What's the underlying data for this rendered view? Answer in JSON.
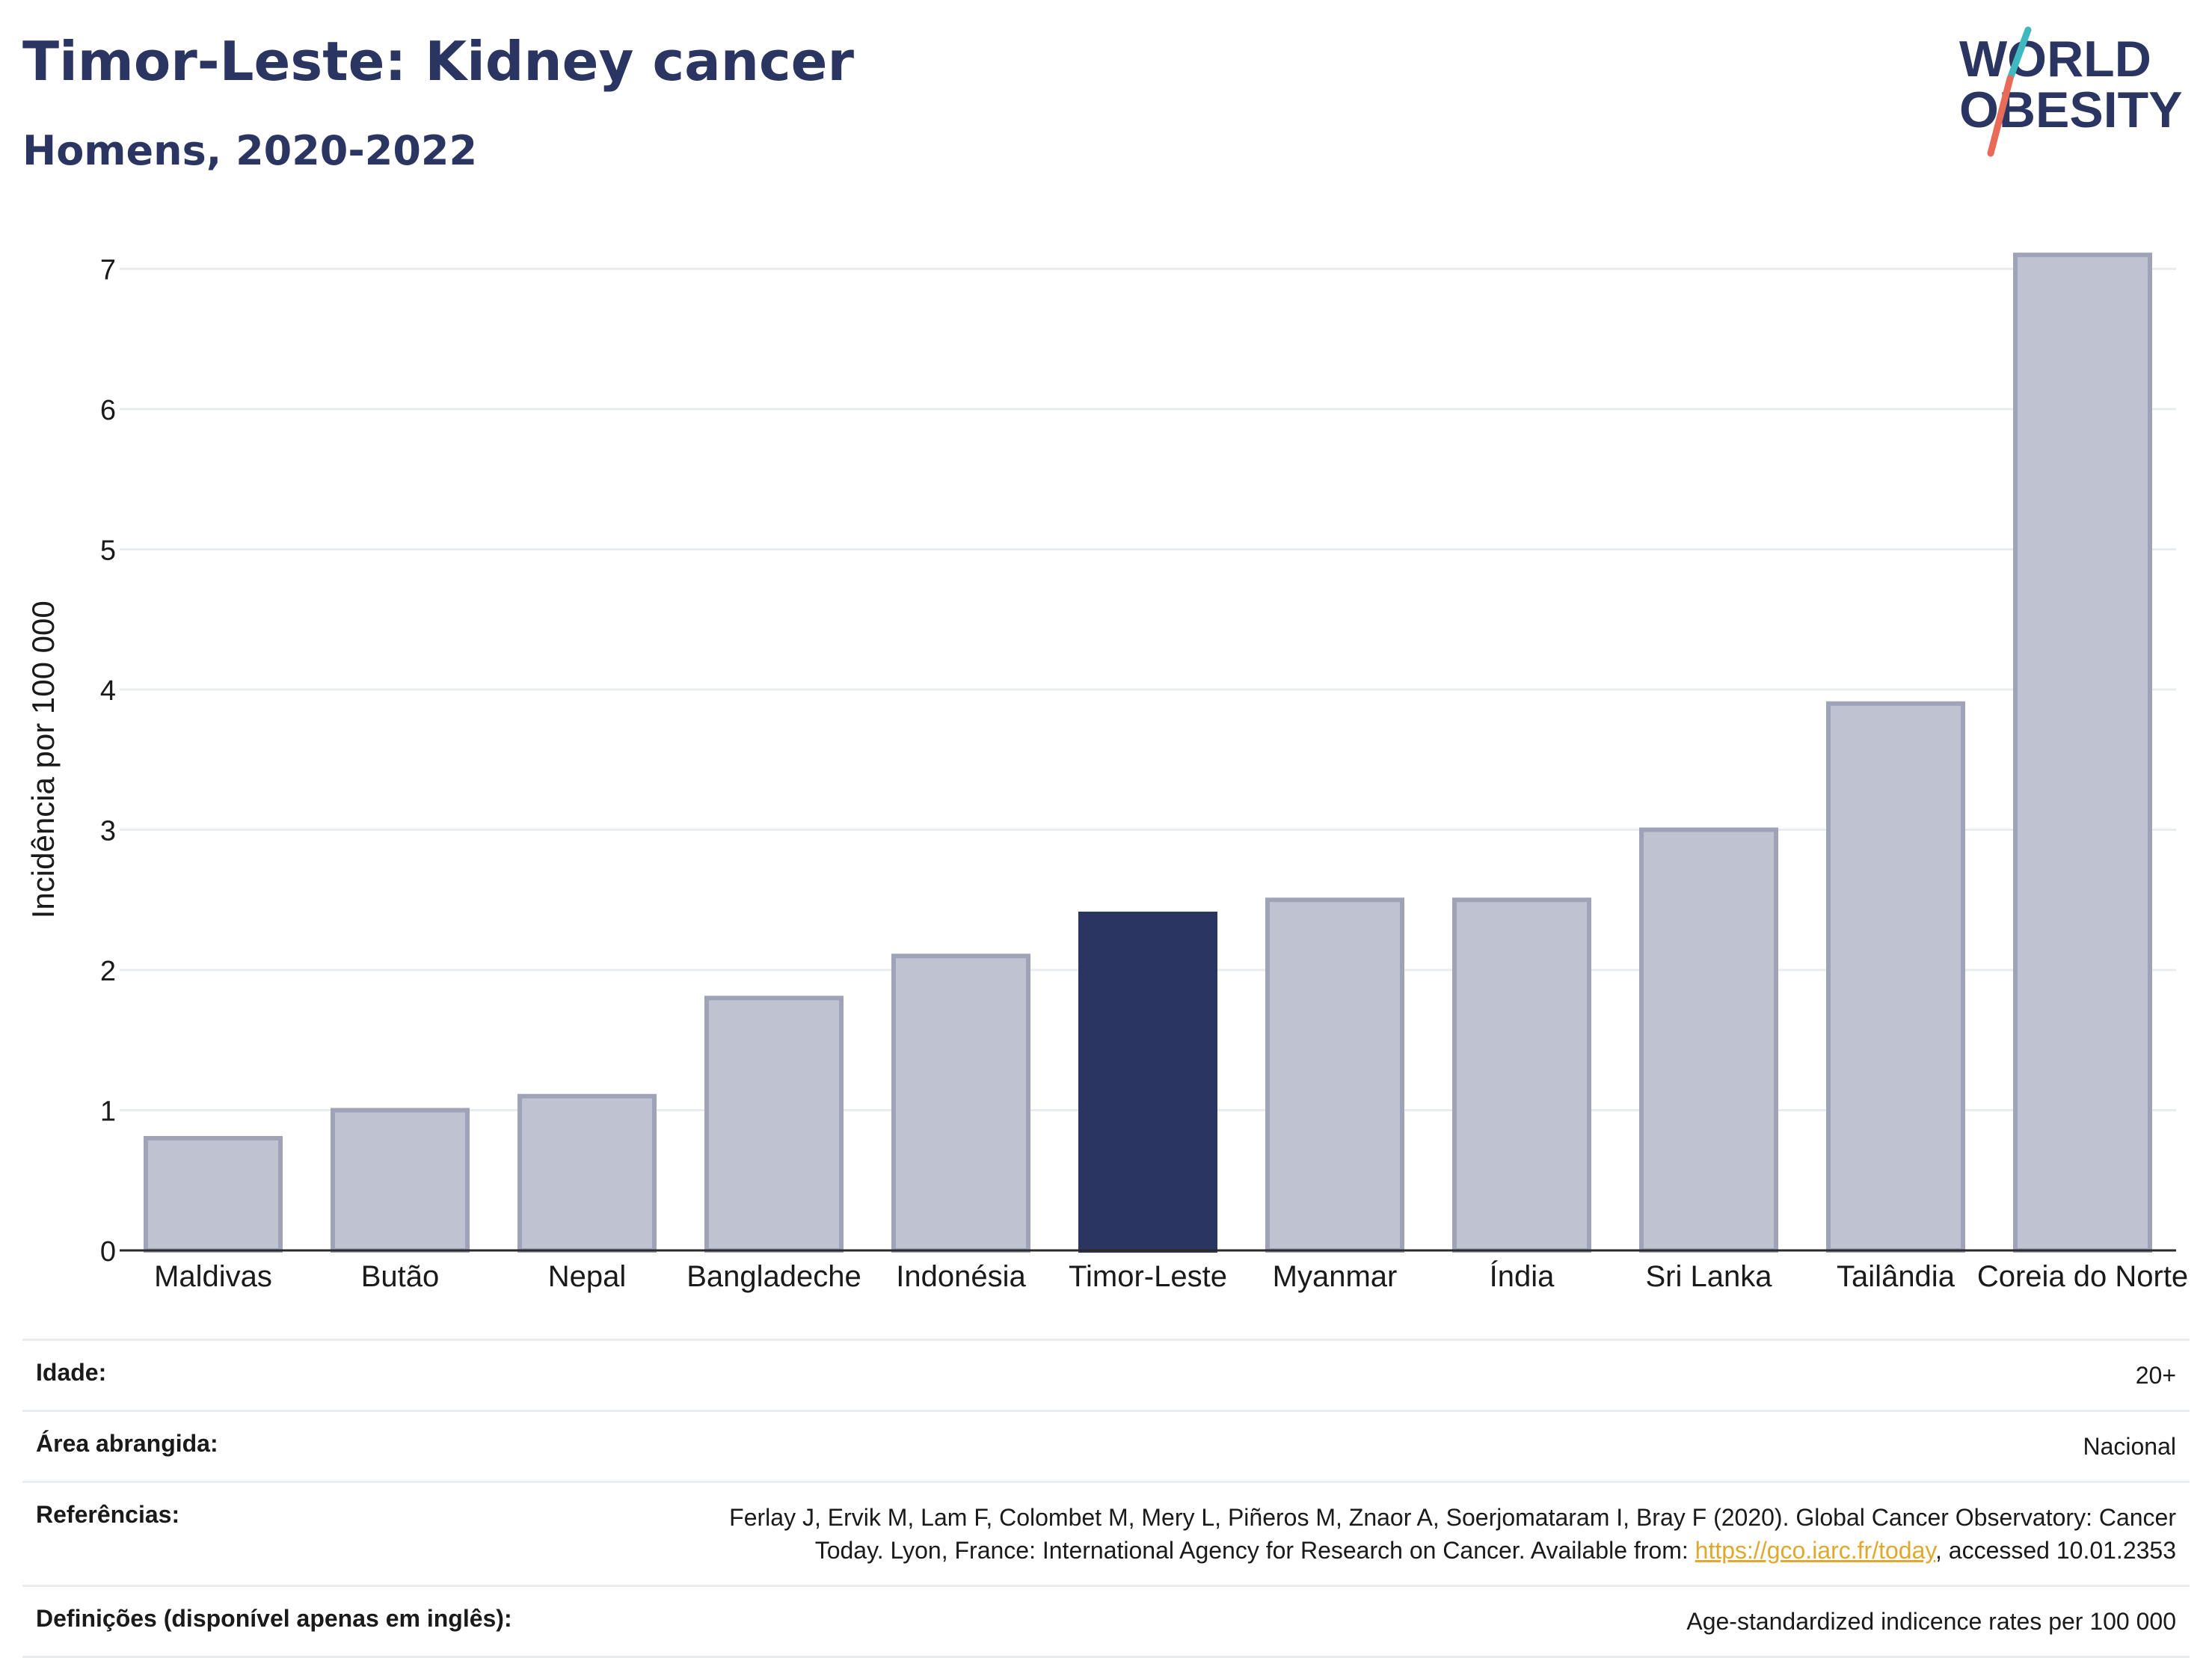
{
  "header": {
    "title": "Timor-Leste: Kidney cancer",
    "subtitle": "Homens, 2020-2022"
  },
  "logo": {
    "line1": "WORLD",
    "line2": "OBESITY",
    "accent_teal": "#3fb8c0",
    "accent_coral": "#e86a58"
  },
  "colors": {
    "bar": "#bfc2d0",
    "bar_border": "#9ea3b8",
    "highlight": "#2b3561",
    "text": "#2b3561",
    "grid": "#e9ecef"
  },
  "chart_data": {
    "type": "bar",
    "categories": [
      "Maldivas",
      "Butão",
      "Nepal",
      "Bangladeche",
      "Indonésia",
      "Timor-Leste",
      "Myanmar",
      "Índia",
      "Sri Lanka",
      "Tailândia",
      "Coreia do Norte"
    ],
    "values": [
      0.8,
      1.0,
      1.1,
      1.8,
      2.1,
      2.4,
      2.5,
      2.5,
      3.0,
      3.9,
      7.1
    ],
    "highlight": "Timor-Leste",
    "ylabel": "Incidência por 100 000",
    "xlabel": "",
    "ylim": [
      0,
      7.5
    ],
    "yticks": [
      0,
      1,
      2,
      3,
      4,
      5,
      6,
      7
    ],
    "grid": true
  },
  "info": {
    "age_label": "Idade:",
    "age_value": "20+",
    "area_label": "Área abrangida:",
    "area_value": "Nacional",
    "ref_label": "Referências:",
    "ref_text_before": "Ferlay J, Ervik M, Lam F, Colombet M, Mery L, Piñeros M, Znaor A, Soerjomataram I, Bray F (2020). Global Cancer Observatory: Cancer Today. Lyon, France: International Agency for Research on Cancer. Available from: ",
    "ref_link": "https://gco.iarc.fr/today",
    "ref_text_after": ", accessed 10.01.2353",
    "def_label": "Definições (disponível apenas em inglês):",
    "def_value": "Age-standardized indicence rates per 100 000"
  }
}
